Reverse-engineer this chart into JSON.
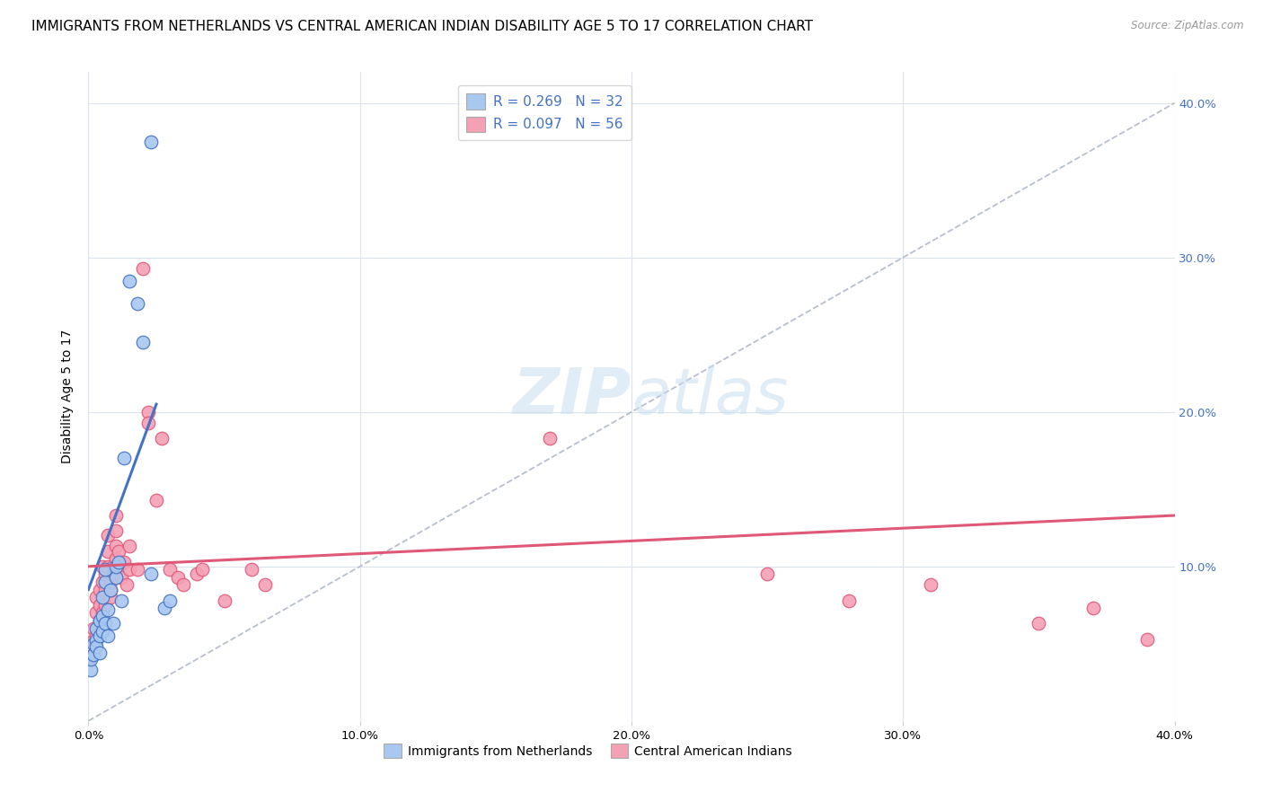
{
  "title": "IMMIGRANTS FROM NETHERLANDS VS CENTRAL AMERICAN INDIAN DISABILITY AGE 5 TO 17 CORRELATION CHART",
  "source": "Source: ZipAtlas.com",
  "ylabel": "Disability Age 5 to 17",
  "xlim": [
    0.0,
    0.4
  ],
  "ylim": [
    0.0,
    0.42
  ],
  "legend_r1": "R = 0.269",
  "legend_n1": "N = 32",
  "legend_r2": "R = 0.097",
  "legend_n2": "N = 56",
  "color_blue": "#a8c8f0",
  "color_pink": "#f4a0b5",
  "line_blue": "#4472c4",
  "line_pink": "#e05878",
  "line_dashed": "#b0b8c8",
  "blue_scatter": [
    [
      0.001,
      0.033
    ],
    [
      0.001,
      0.04
    ],
    [
      0.002,
      0.043
    ],
    [
      0.002,
      0.05
    ],
    [
      0.003,
      0.052
    ],
    [
      0.003,
      0.048
    ],
    [
      0.003,
      0.06
    ],
    [
      0.004,
      0.055
    ],
    [
      0.004,
      0.065
    ],
    [
      0.004,
      0.044
    ],
    [
      0.005,
      0.068
    ],
    [
      0.005,
      0.058
    ],
    [
      0.005,
      0.08
    ],
    [
      0.006,
      0.063
    ],
    [
      0.006,
      0.09
    ],
    [
      0.006,
      0.098
    ],
    [
      0.007,
      0.055
    ],
    [
      0.007,
      0.072
    ],
    [
      0.008,
      0.085
    ],
    [
      0.009,
      0.063
    ],
    [
      0.01,
      0.093
    ],
    [
      0.01,
      0.1
    ],
    [
      0.011,
      0.103
    ],
    [
      0.012,
      0.078
    ],
    [
      0.013,
      0.17
    ],
    [
      0.015,
      0.285
    ],
    [
      0.018,
      0.27
    ],
    [
      0.02,
      0.245
    ],
    [
      0.023,
      0.095
    ],
    [
      0.028,
      0.073
    ],
    [
      0.03,
      0.078
    ],
    [
      0.023,
      0.375
    ]
  ],
  "pink_scatter": [
    [
      0.001,
      0.042
    ],
    [
      0.002,
      0.052
    ],
    [
      0.002,
      0.06
    ],
    [
      0.003,
      0.055
    ],
    [
      0.003,
      0.07
    ],
    [
      0.003,
      0.08
    ],
    [
      0.004,
      0.065
    ],
    [
      0.004,
      0.075
    ],
    [
      0.004,
      0.085
    ],
    [
      0.005,
      0.06
    ],
    [
      0.005,
      0.07
    ],
    [
      0.005,
      0.09
    ],
    [
      0.005,
      0.1
    ],
    [
      0.006,
      0.075
    ],
    [
      0.006,
      0.085
    ],
    [
      0.006,
      0.095
    ],
    [
      0.007,
      0.1
    ],
    [
      0.007,
      0.11
    ],
    [
      0.007,
      0.12
    ],
    [
      0.008,
      0.08
    ],
    [
      0.008,
      0.085
    ],
    [
      0.008,
      0.09
    ],
    [
      0.009,
      0.095
    ],
    [
      0.009,
      0.1
    ],
    [
      0.01,
      0.105
    ],
    [
      0.01,
      0.113
    ],
    [
      0.01,
      0.123
    ],
    [
      0.01,
      0.133
    ],
    [
      0.011,
      0.1
    ],
    [
      0.011,
      0.11
    ],
    [
      0.012,
      0.093
    ],
    [
      0.013,
      0.103
    ],
    [
      0.014,
      0.088
    ],
    [
      0.015,
      0.098
    ],
    [
      0.015,
      0.113
    ],
    [
      0.018,
      0.098
    ],
    [
      0.02,
      0.293
    ],
    [
      0.022,
      0.2
    ],
    [
      0.022,
      0.193
    ],
    [
      0.025,
      0.143
    ],
    [
      0.027,
      0.183
    ],
    [
      0.03,
      0.098
    ],
    [
      0.033,
      0.093
    ],
    [
      0.035,
      0.088
    ],
    [
      0.04,
      0.095
    ],
    [
      0.042,
      0.098
    ],
    [
      0.05,
      0.078
    ],
    [
      0.06,
      0.098
    ],
    [
      0.065,
      0.088
    ],
    [
      0.17,
      0.183
    ],
    [
      0.25,
      0.095
    ],
    [
      0.28,
      0.078
    ],
    [
      0.31,
      0.088
    ],
    [
      0.35,
      0.063
    ],
    [
      0.37,
      0.073
    ],
    [
      0.39,
      0.053
    ]
  ],
  "blue_line": [
    [
      0.0,
      0.085
    ],
    [
      0.025,
      0.205
    ]
  ],
  "pink_line": [
    [
      0.0,
      0.1
    ],
    [
      0.4,
      0.133
    ]
  ],
  "diag_line": [
    [
      0.0,
      0.0
    ],
    [
      0.4,
      0.4
    ]
  ],
  "background_color": "#ffffff",
  "grid_color": "#dde3ea",
  "title_fontsize": 11,
  "axis_fontsize": 10,
  "tick_fontsize": 9.5,
  "right_tick_color": "#4472c4"
}
